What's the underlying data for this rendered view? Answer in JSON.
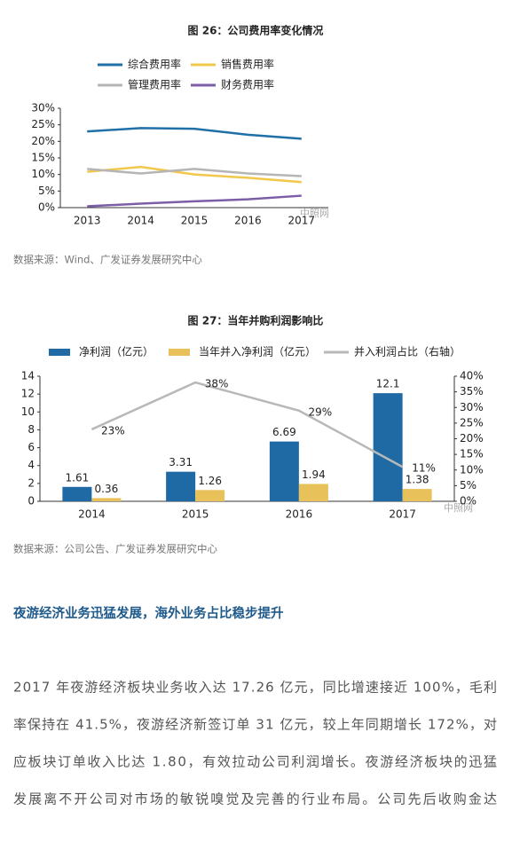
{
  "chart_data": [
    {
      "type": "line",
      "title": "图 26：公司费用率变化情况",
      "categories": [
        "2013",
        "2014",
        "2015",
        "2016",
        "2017"
      ],
      "series": [
        {
          "name": "综合费用率",
          "color": "#1f6fa8",
          "values": [
            23,
            24,
            23.8,
            22,
            20.8
          ]
        },
        {
          "name": "销售费用率",
          "color": "#f1c84b",
          "values": [
            10.8,
            12.3,
            10,
            9,
            7.7
          ]
        },
        {
          "name": "管理费用率",
          "color": "#b5b5b5",
          "values": [
            11.7,
            10.3,
            11.7,
            10.3,
            9.5
          ]
        },
        {
          "name": "财务费用率",
          "color": "#7b5ea7",
          "values": [
            0.4,
            1.2,
            1.9,
            2.5,
            3.6
          ]
        }
      ],
      "ylim": [
        0,
        30
      ],
      "yticks": [
        {
          "value": 0,
          "label": "0%"
        },
        {
          "value": 5,
          "label": "5%"
        },
        {
          "value": 10,
          "label": "10%"
        },
        {
          "value": 15,
          "label": "15%"
        },
        {
          "value": 20,
          "label": "20%"
        },
        {
          "value": 25,
          "label": "25%"
        },
        {
          "value": 30,
          "label": "30%"
        }
      ],
      "grid": false
    },
    {
      "type": "bar",
      "title": "图 27：当年并购利润影响比",
      "categories": [
        "2014",
        "2015",
        "2016",
        "2017"
      ],
      "series": [
        {
          "name": "净利润（亿元）",
          "color": "#1f6aa5",
          "values": [
            1.61,
            3.31,
            6.69,
            12.1
          ]
        },
        {
          "name": "当年并入净利润（亿元）",
          "color": "#e8c15a",
          "values": [
            0.36,
            1.26,
            1.94,
            1.38
          ]
        },
        {
          "name": "并入利润占比（右轴）",
          "color": "#b8b8b8",
          "type": "line",
          "axis": "y2",
          "values": [
            23,
            38,
            29,
            11
          ],
          "value_labels": [
            "23%",
            "38%",
            "29%",
            "11%"
          ]
        }
      ],
      "ylim": [
        0,
        14
      ],
      "yticks": [
        0,
        2,
        4,
        6,
        8,
        10,
        12,
        14
      ],
      "y2lim": [
        0,
        40
      ],
      "y2ticks": [
        {
          "value": 0,
          "label": "0%"
        },
        {
          "value": 5,
          "label": "5%"
        },
        {
          "value": 10,
          "label": "10%"
        },
        {
          "value": 15,
          "label": "15%"
        },
        {
          "value": 20,
          "label": "20%"
        },
        {
          "value": 25,
          "label": "25%"
        },
        {
          "value": 30,
          "label": "30%"
        },
        {
          "value": 35,
          "label": "35%"
        },
        {
          "value": 40,
          "label": "40%"
        }
      ],
      "grid": false
    }
  ],
  "sources": [
    "数据来源：Wind、广发证券发展研究中心",
    "数据来源：公司公告、广发证券发展研究中心"
  ],
  "watermarks": [
    "中照网",
    "中照网"
  ],
  "section": {
    "heading": "夜游经济业务迅猛发展，海外业务占比稳步提升",
    "lines": [
      "2017 年夜游经济板块业务收入达 17.26 亿元，同比增速接近 100%，毛利",
      "率保持在 41.5%，夜游经济新签订单 31 亿元，较上年同期增长 172%，对",
      "应板块订单收入比达 1.80，有效拉动公司利润增长。夜游经济板块的迅猛",
      "发展离不开公司对市场的敏锐嗅觉及完善的行业布局。公司先后收购金达"
    ]
  }
}
